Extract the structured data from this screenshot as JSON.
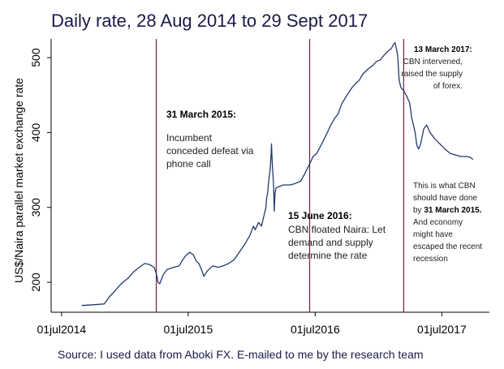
{
  "chart_data": {
    "type": "line",
    "title": "Daily rate, 28 Aug 2014  to 29 Sept 2017",
    "ylabel": "US$/Naira parallel market exchange rate",
    "xlabel": "",
    "source": "Source: I used data from Aboki FX. E-mailed to me by the research team",
    "xlim": [
      "2014-06-01",
      "2017-11-15"
    ],
    "ylim": [
      160,
      525
    ],
    "x_ticks": [
      {
        "date": "2014-07-01",
        "label": "01jul2014"
      },
      {
        "date": "2015-07-01",
        "label": "01jul2015"
      },
      {
        "date": "2016-07-01",
        "label": "01jul2016"
      },
      {
        "date": "2017-07-01",
        "label": "01jul2017"
      }
    ],
    "y_ticks": [
      200,
      300,
      400,
      500
    ],
    "grid": false,
    "series": [
      {
        "name": "",
        "color": "#1f3a6e",
        "points": [
          [
            "2014-08-28",
            169
          ],
          [
            "2014-10-01",
            170
          ],
          [
            "2014-11-01",
            171
          ],
          [
            "2014-11-15",
            180
          ],
          [
            "2014-12-01",
            188
          ],
          [
            "2014-12-20",
            198
          ],
          [
            "2015-01-10",
            206
          ],
          [
            "2015-01-25",
            214
          ],
          [
            "2015-02-10",
            220
          ],
          [
            "2015-02-25",
            225
          ],
          [
            "2015-03-10",
            224
          ],
          [
            "2015-03-25",
            220
          ],
          [
            "2015-04-01",
            210
          ],
          [
            "2015-04-05",
            200
          ],
          [
            "2015-04-10",
            198
          ],
          [
            "2015-04-20",
            210
          ],
          [
            "2015-05-01",
            217
          ],
          [
            "2015-05-20",
            220
          ],
          [
            "2015-06-05",
            222
          ],
          [
            "2015-06-15",
            230
          ],
          [
            "2015-06-25",
            236
          ],
          [
            "2015-07-05",
            240
          ],
          [
            "2015-07-15",
            237
          ],
          [
            "2015-07-25",
            228
          ],
          [
            "2015-08-01",
            225
          ],
          [
            "2015-08-10",
            215
          ],
          [
            "2015-08-15",
            208
          ],
          [
            "2015-08-25",
            215
          ],
          [
            "2015-09-10",
            222
          ],
          [
            "2015-09-25",
            220
          ],
          [
            "2015-10-10",
            222
          ],
          [
            "2015-10-25",
            225
          ],
          [
            "2015-11-10",
            230
          ],
          [
            "2015-11-25",
            240
          ],
          [
            "2015-12-10",
            250
          ],
          [
            "2015-12-25",
            262
          ],
          [
            "2016-01-05",
            275
          ],
          [
            "2016-01-10",
            270
          ],
          [
            "2016-01-20",
            280
          ],
          [
            "2016-01-28",
            275
          ],
          [
            "2016-02-05",
            290
          ],
          [
            "2016-02-10",
            300
          ],
          [
            "2016-02-12",
            312
          ],
          [
            "2016-02-15",
            320
          ],
          [
            "2016-02-18",
            335
          ],
          [
            "2016-02-22",
            350
          ],
          [
            "2016-02-25",
            372
          ],
          [
            "2016-02-26",
            385
          ],
          [
            "2016-02-28",
            360
          ],
          [
            "2016-03-03",
            330
          ],
          [
            "2016-03-05",
            295
          ],
          [
            "2016-03-07",
            318
          ],
          [
            "2016-03-10",
            326
          ],
          [
            "2016-03-20",
            328
          ],
          [
            "2016-04-01",
            330
          ],
          [
            "2016-04-20",
            330
          ],
          [
            "2016-05-05",
            332
          ],
          [
            "2016-05-20",
            335
          ],
          [
            "2016-06-01",
            345
          ],
          [
            "2016-06-15",
            358
          ],
          [
            "2016-06-25",
            368
          ],
          [
            "2016-07-05",
            372
          ],
          [
            "2016-07-20",
            385
          ],
          [
            "2016-08-05",
            400
          ],
          [
            "2016-08-15",
            410
          ],
          [
            "2016-08-25",
            418
          ],
          [
            "2016-09-05",
            425
          ],
          [
            "2016-09-15",
            438
          ],
          [
            "2016-10-01",
            450
          ],
          [
            "2016-10-15",
            460
          ],
          [
            "2016-10-25",
            465
          ],
          [
            "2016-11-05",
            470
          ],
          [
            "2016-11-15",
            478
          ],
          [
            "2016-12-01",
            485
          ],
          [
            "2016-12-15",
            490
          ],
          [
            "2016-12-25",
            495
          ],
          [
            "2017-01-05",
            497
          ],
          [
            "2017-01-15",
            503
          ],
          [
            "2017-01-25",
            508
          ],
          [
            "2017-02-05",
            512
          ],
          [
            "2017-02-12",
            518
          ],
          [
            "2017-02-16",
            520
          ],
          [
            "2017-02-20",
            512
          ],
          [
            "2017-02-24",
            502
          ],
          [
            "2017-02-28",
            470
          ],
          [
            "2017-03-05",
            460
          ],
          [
            "2017-03-13",
            456
          ],
          [
            "2017-03-20",
            450
          ],
          [
            "2017-03-30",
            440
          ],
          [
            "2017-04-05",
            420
          ],
          [
            "2017-04-10",
            410
          ],
          [
            "2017-04-15",
            400
          ],
          [
            "2017-04-20",
            383
          ],
          [
            "2017-04-25",
            378
          ],
          [
            "2017-05-01",
            385
          ],
          [
            "2017-05-10",
            405
          ],
          [
            "2017-05-18",
            410
          ],
          [
            "2017-05-28",
            400
          ],
          [
            "2017-06-10",
            392
          ],
          [
            "2017-06-25",
            385
          ],
          [
            "2017-07-10",
            378
          ],
          [
            "2017-07-25",
            372
          ],
          [
            "2017-08-10",
            370
          ],
          [
            "2017-08-25",
            368
          ],
          [
            "2017-09-10",
            368
          ],
          [
            "2017-09-20",
            367
          ],
          [
            "2017-09-29",
            364
          ]
        ]
      }
    ],
    "vlines": [
      {
        "date": "2015-03-31",
        "color": "#7a1f3d"
      },
      {
        "date": "2016-06-15",
        "color": "#7a1f3d"
      },
      {
        "date": "2017-03-13",
        "color": "#7a1f3d"
      }
    ],
    "annotations": [
      {
        "id": "mar2015",
        "heading": "31 March 2015:",
        "lines": [
          "Incumbent",
          "conceded defeat via",
          "phone call"
        ]
      },
      {
        "id": "jun2016",
        "heading": "15 June 2016:",
        "lines": [
          "CBN floated Naira: Let",
          "demand and supply",
          "determine the rate"
        ]
      },
      {
        "id": "mar2017",
        "heading": "13 March 2017:",
        "lines": [
          "CBN intervened,",
          "raised the supply",
          "of forex."
        ]
      },
      {
        "id": "should",
        "lines": [
          "This is what CBN",
          "should have done",
          "by ",
          "And economy",
          "might have",
          "escaped the recent",
          "recession"
        ],
        "bold_inline": "31 March 2015."
      }
    ]
  }
}
